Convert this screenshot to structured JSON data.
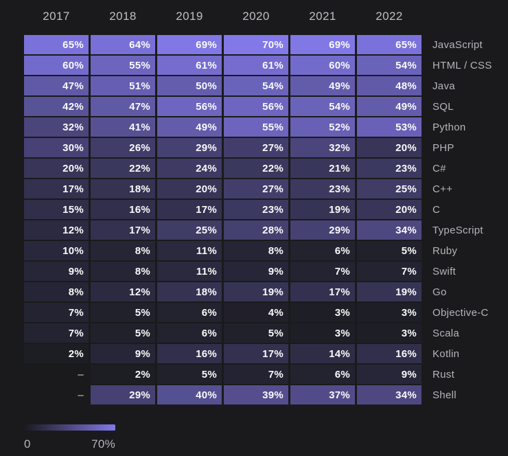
{
  "chart_data": {
    "type": "heatmap",
    "title": "",
    "columns": [
      "2017",
      "2018",
      "2019",
      "2020",
      "2021",
      "2022"
    ],
    "rows": [
      {
        "label": "JavaScript",
        "values": [
          65,
          64,
          69,
          70,
          69,
          65
        ]
      },
      {
        "label": "HTML / CSS",
        "values": [
          60,
          55,
          61,
          61,
          60,
          54
        ]
      },
      {
        "label": "Java",
        "values": [
          47,
          51,
          50,
          54,
          49,
          48
        ]
      },
      {
        "label": "SQL",
        "values": [
          42,
          47,
          56,
          56,
          54,
          49
        ]
      },
      {
        "label": "Python",
        "values": [
          32,
          41,
          49,
          55,
          52,
          53
        ]
      },
      {
        "label": "PHP",
        "values": [
          30,
          26,
          29,
          27,
          32,
          20
        ]
      },
      {
        "label": "C#",
        "values": [
          20,
          22,
          24,
          22,
          21,
          23
        ]
      },
      {
        "label": "C++",
        "values": [
          17,
          18,
          20,
          27,
          23,
          25
        ]
      },
      {
        "label": "C",
        "values": [
          15,
          16,
          17,
          23,
          19,
          20
        ]
      },
      {
        "label": "TypeScript",
        "values": [
          12,
          17,
          25,
          28,
          29,
          34
        ]
      },
      {
        "label": "Ruby",
        "values": [
          10,
          8,
          11,
          8,
          6,
          5
        ]
      },
      {
        "label": "Swift",
        "values": [
          9,
          8,
          11,
          9,
          7,
          7
        ]
      },
      {
        "label": "Go",
        "values": [
          8,
          12,
          18,
          19,
          17,
          19
        ]
      },
      {
        "label": "Objective-C",
        "values": [
          7,
          5,
          6,
          4,
          3,
          3
        ]
      },
      {
        "label": "Scala",
        "values": [
          7,
          5,
          6,
          5,
          3,
          3
        ]
      },
      {
        "label": "Kotlin",
        "values": [
          2,
          9,
          16,
          17,
          14,
          16
        ]
      },
      {
        "label": "Rust",
        "values": [
          null,
          2,
          5,
          7,
          6,
          9
        ]
      },
      {
        "label": "Shell",
        "values": [
          null,
          29,
          40,
          39,
          37,
          34
        ]
      }
    ],
    "value_suffix": "%",
    "null_display": "–",
    "colorscale": {
      "min": 0,
      "max": 70,
      "min_color": "#1a1a1e",
      "max_color": "#8278e8"
    },
    "legend": {
      "min_label": "0",
      "max_label": "70%"
    }
  },
  "colors": {
    "background": "#1a1a1c",
    "value_text": "#fafafa",
    "header_text": "#c0bec4",
    "row_label_text": "#b6b4ba",
    "legend_text": "#b7b5bb"
  }
}
